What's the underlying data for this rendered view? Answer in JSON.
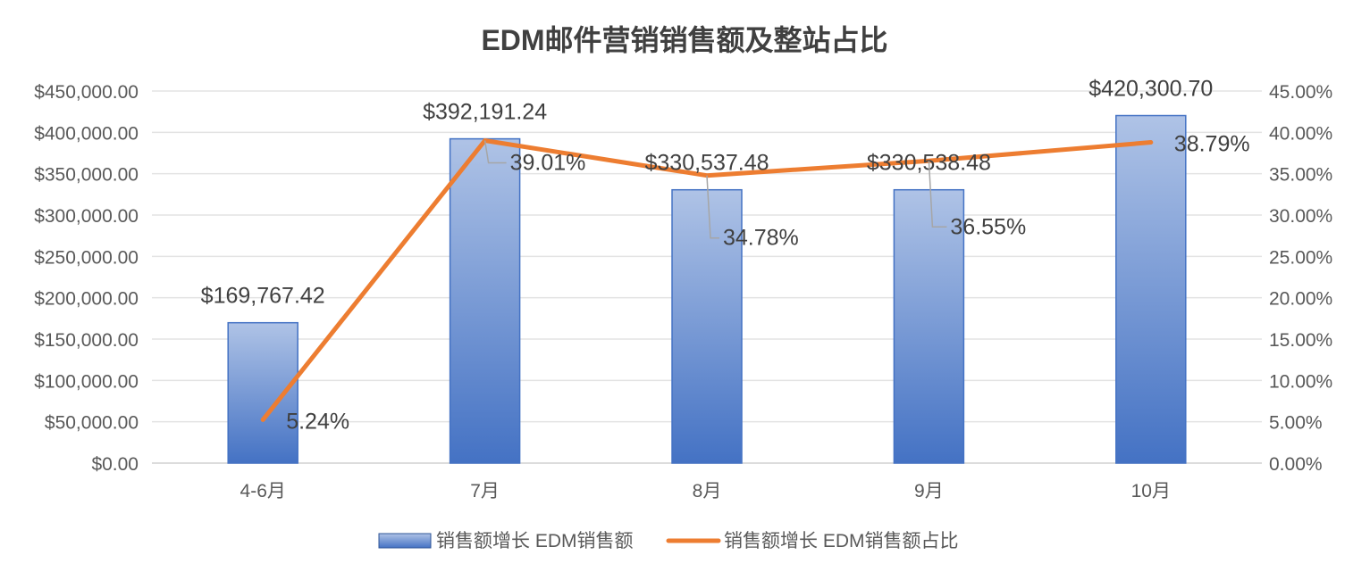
{
  "chart_data": {
    "type": "bar+line",
    "title": "EDM邮件营销销售额及整站占比",
    "categories": [
      "4-6月",
      "7月",
      "8月",
      "9月",
      "10月"
    ],
    "series": [
      {
        "name": "销售额增长 EDM销售额",
        "type": "bar",
        "axis": "left",
        "values": [
          169767.42,
          392191.24,
          330537.48,
          330538.48,
          420300.7
        ],
        "labels": [
          "$169,767.42",
          "$392,191.24",
          "$330,537.48",
          "$330,538.48",
          "$420,300.70"
        ],
        "color": "#4472C4"
      },
      {
        "name": "销售额增长 EDM销售额占比",
        "type": "line",
        "axis": "right",
        "values": [
          5.24,
          39.01,
          34.78,
          36.55,
          38.79
        ],
        "labels": [
          "5.24%",
          "39.01%",
          "34.78%",
          "36.55%",
          "38.79%"
        ],
        "color": "#ED7D31"
      }
    ],
    "y_left": {
      "ylim": [
        0,
        450000
      ],
      "ticks": [
        "$0.00",
        "$50,000.00",
        "$100,000.00",
        "$150,000.00",
        "$200,000.00",
        "$250,000.00",
        "$300,000.00",
        "$350,000.00",
        "$400,000.00",
        "$450,000.00"
      ]
    },
    "y_right": {
      "ylim": [
        0,
        45
      ],
      "ticks": [
        "0.00%",
        "5.00%",
        "10.00%",
        "15.00%",
        "20.00%",
        "25.00%",
        "30.00%",
        "35.00%",
        "40.00%",
        "45.00%"
      ]
    },
    "grid": true,
    "legend": "bottom"
  }
}
